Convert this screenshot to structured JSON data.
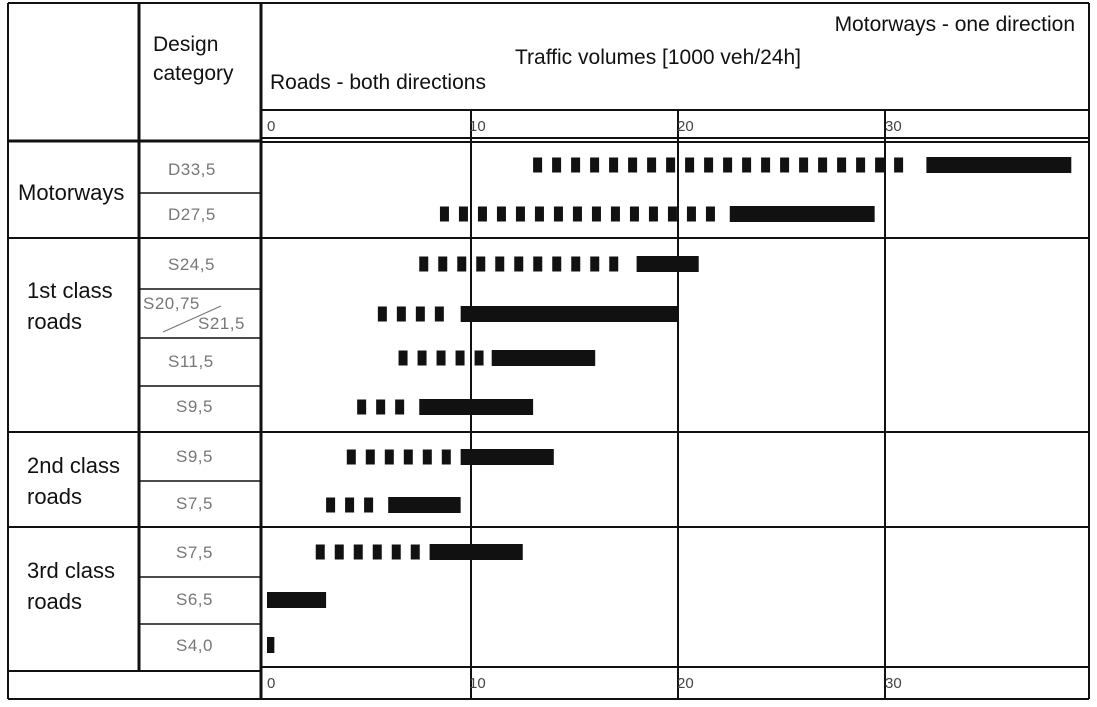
{
  "chart_data": {
    "type": "bar",
    "title": "Traffic volumes [1000 veh/24h]",
    "header_left": "Roads - both directions",
    "header_right": "Motorways - one direction",
    "category_header": [
      "Design",
      "category"
    ],
    "x_ticks": [
      "0",
      "10",
      "20",
      "30"
    ],
    "xlim": [
      0,
      40
    ],
    "grid": true,
    "groups": [
      {
        "name": "Motorways",
        "label_lines": [
          "Motorways"
        ],
        "rows": [
          {
            "category": "D33,5",
            "dashed_start": 13,
            "solid_start": 32,
            "end": 39
          },
          {
            "category": "D27,5",
            "dashed_start": 8.5,
            "solid_start": 22.5,
            "end": 29.5
          }
        ]
      },
      {
        "name": "1st class roads",
        "label_lines": [
          "1st class",
          "roads"
        ],
        "rows": [
          {
            "category": "S24,5",
            "dashed_start": 7.5,
            "solid_start": 18,
            "end": 21
          },
          {
            "category": "S20,75/S21,5",
            "category_lines": [
              "S20,75",
              "S21,5"
            ],
            "dashed_start": 5.5,
            "solid_start": 9.5,
            "end": 20
          },
          {
            "category": "S11,5",
            "dashed_start": 6.5,
            "solid_start": 11,
            "end": 16
          },
          {
            "category": "S9,5",
            "dashed_start": 4.5,
            "solid_start": 7.5,
            "end": 13
          }
        ]
      },
      {
        "name": "2nd class roads",
        "label_lines": [
          "2nd class",
          "roads"
        ],
        "rows": [
          {
            "category": "S9,5",
            "dashed_start": 4,
            "solid_start": 9.5,
            "end": 14
          },
          {
            "category": "S7,5",
            "dashed_start": 3,
            "solid_start": 6,
            "end": 9.5
          }
        ]
      },
      {
        "name": "3rd class roads",
        "label_lines": [
          "3rd class",
          "roads"
        ],
        "rows": [
          {
            "category": "S7,5",
            "dashed_start": 2.5,
            "solid_start": 8,
            "end": 12.5
          },
          {
            "category": "S6,5",
            "dashed_start": null,
            "solid_start": 0,
            "end": 3
          },
          {
            "category": "S4,0",
            "dashed_start": null,
            "solid_start": 0,
            "end": 0.5
          }
        ]
      }
    ]
  }
}
